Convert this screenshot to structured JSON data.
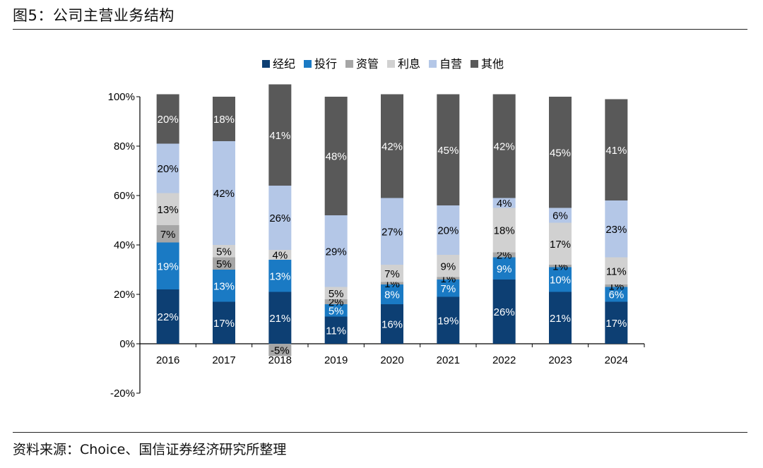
{
  "figure": {
    "title": "图5：公司主营业务结构",
    "source": "资料来源：Choice、国信证券经济研究所整理"
  },
  "colors": {
    "经纪": "#0d3f73",
    "投行": "#1a7ac4",
    "资管": "#a6a6a6",
    "利息": "#d1d1d1",
    "自营": "#b4c7e7",
    "其他": "#595959"
  },
  "chart_data": {
    "type": "bar",
    "stacked": true,
    "title": "",
    "xlabel": "",
    "ylabel": "",
    "ylim": [
      -20,
      100
    ],
    "yticks": [
      "-20%",
      "0%",
      "20%",
      "40%",
      "60%",
      "80%",
      "100%"
    ],
    "ytick_values": [
      -20,
      0,
      20,
      40,
      60,
      80,
      100
    ],
    "legend_position": "top-center",
    "categories": [
      "2016",
      "2017",
      "2018",
      "2019",
      "2020",
      "2021",
      "2022",
      "2023",
      "2024"
    ],
    "series": [
      {
        "name": "经纪",
        "values": [
          22,
          17,
          21,
          11,
          16,
          19,
          26,
          21,
          17
        ]
      },
      {
        "name": "投行",
        "values": [
          19,
          13,
          13,
          5,
          8,
          7,
          9,
          10,
          6
        ]
      },
      {
        "name": "资管",
        "values": [
          7,
          5,
          -5,
          2,
          1,
          1,
          2,
          1,
          1
        ]
      },
      {
        "name": "利息",
        "values": [
          13,
          5,
          4,
          5,
          7,
          9,
          18,
          17,
          11
        ]
      },
      {
        "name": "自营",
        "values": [
          20,
          42,
          26,
          29,
          27,
          20,
          4,
          6,
          23
        ]
      },
      {
        "name": "其他",
        "values": [
          20,
          18,
          41,
          48,
          42,
          45,
          42,
          45,
          41
        ]
      }
    ]
  }
}
